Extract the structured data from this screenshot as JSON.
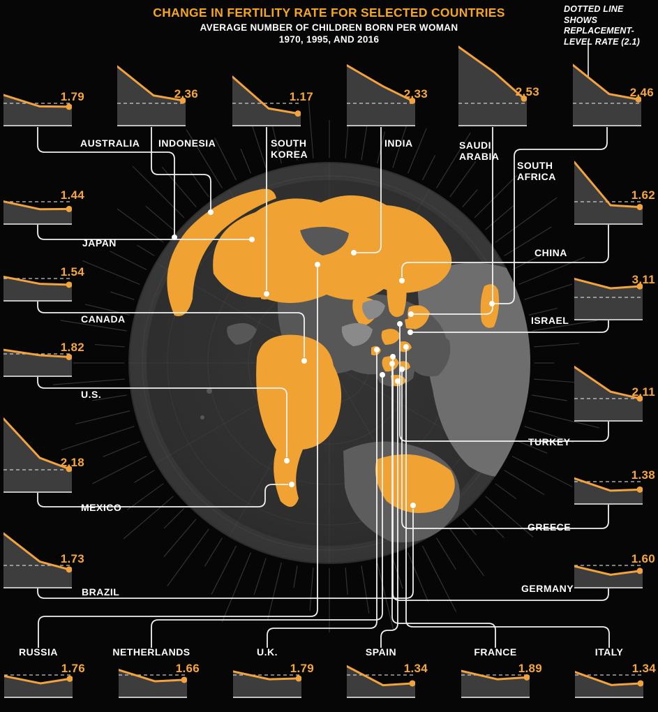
{
  "header": {
    "title": "CHANGE IN FERTILITY RATE FOR SELECTED COUNTRIES",
    "subtitle_line1": "AVERAGE NUMBER OF CHILDREN BORN PER WOMAN",
    "subtitle_line2": "1970, 1995, AND 2016"
  },
  "annotation": {
    "line1": "DOTTED LINE SHOWS",
    "line2": "REPLACEMENT-",
    "line3": "LEVEL RATE (2.1)",
    "replacement_level_rate": 2.1
  },
  "colors": {
    "accent_orange": "#F2A33C",
    "title_orange": "#F5A51E",
    "chart_fill": "#3D3D3D",
    "background": "#060606",
    "text_white": "#FFFFFF"
  },
  "chart_data": {
    "type": "line",
    "title": "CHANGE IN FERTILITY RATE FOR SELECTED COUNTRIES",
    "subtitle": "AVERAGE NUMBER OF CHILDREN BORN PER WOMAN 1970, 1995, AND 2016",
    "x": [
      1970,
      1995,
      2016
    ],
    "replacement_line": 2.1,
    "ylabel": "children born per woman",
    "series": [
      {
        "id": "australia",
        "name": "AUSTRALIA",
        "name_lines": [
          "AUSTRALIA"
        ],
        "values": [
          2.86,
          1.82,
          1.79
        ],
        "label": "1.79"
      },
      {
        "id": "indonesia",
        "name": "INDONESIA",
        "name_lines": [
          "INDONESIA"
        ],
        "values": [
          5.47,
          2.82,
          2.36
        ],
        "label": "2.36"
      },
      {
        "id": "south-korea",
        "name": "SOUTH KOREA",
        "name_lines": [
          "SOUTH",
          "KOREA"
        ],
        "values": [
          4.53,
          1.63,
          1.17
        ],
        "label": "1.17"
      },
      {
        "id": "india",
        "name": "INDIA",
        "name_lines": [
          "INDIA"
        ],
        "values": [
          5.57,
          3.65,
          2.33
        ],
        "label": "2.33"
      },
      {
        "id": "saudi-arabia",
        "name": "SAUDI ARABIA",
        "name_lines": [
          "SAUDI",
          "ARABIA"
        ],
        "values": [
          7.26,
          4.9,
          2.53
        ],
        "label": "2.53"
      },
      {
        "id": "south-africa",
        "name": "SOUTH AFRICA",
        "name_lines": [
          "SOUTH",
          "AFRICA"
        ],
        "values": [
          5.6,
          2.95,
          2.46
        ],
        "label": "2.46"
      },
      {
        "id": "japan",
        "name": "JAPAN",
        "name_lines": [
          "JAPAN"
        ],
        "values": [
          2.13,
          1.42,
          1.44
        ],
        "label": "1.44"
      },
      {
        "id": "canada",
        "name": "CANADA",
        "name_lines": [
          "CANADA"
        ],
        "values": [
          2.26,
          1.62,
          1.54
        ],
        "label": "1.54"
      },
      {
        "id": "us",
        "name": "U.S.",
        "name_lines": [
          "U.S."
        ],
        "values": [
          2.48,
          1.98,
          1.82
        ],
        "label": "1.82"
      },
      {
        "id": "mexico",
        "name": "MEXICO",
        "name_lines": [
          "MEXICO"
        ],
        "values": [
          6.77,
          3.19,
          2.18
        ],
        "label": "2.18"
      },
      {
        "id": "brazil",
        "name": "BRAZIL",
        "name_lines": [
          "BRAZIL"
        ],
        "values": [
          5.02,
          2.45,
          1.73
        ],
        "label": "1.73"
      },
      {
        "id": "china",
        "name": "CHINA",
        "name_lines": [
          "CHINA"
        ],
        "values": [
          5.73,
          1.78,
          1.62
        ],
        "label": "1.62"
      },
      {
        "id": "israel",
        "name": "ISRAEL",
        "name_lines": [
          "ISRAEL"
        ],
        "values": [
          3.79,
          2.93,
          3.11
        ],
        "label": "3.11"
      },
      {
        "id": "turkey",
        "name": "TURKEY",
        "name_lines": [
          "TURKEY"
        ],
        "values": [
          5.0,
          2.73,
          2.11
        ],
        "label": "2.11"
      },
      {
        "id": "greece",
        "name": "GREECE",
        "name_lines": [
          "GREECE"
        ],
        "values": [
          2.4,
          1.28,
          1.38
        ],
        "label": "1.38"
      },
      {
        "id": "germany",
        "name": "GERMANY",
        "name_lines": [
          "GERMANY"
        ],
        "values": [
          2.03,
          1.25,
          1.6
        ],
        "label": "1.60"
      },
      {
        "id": "russia",
        "name": "RUSSIA",
        "name_lines": [
          "RUSSIA"
        ],
        "values": [
          2.01,
          1.34,
          1.76
        ],
        "label": "1.76"
      },
      {
        "id": "netherlands",
        "name": "NETHERLANDS",
        "name_lines": [
          "NETHERLANDS"
        ],
        "values": [
          2.57,
          1.53,
          1.66
        ],
        "label": "1.66"
      },
      {
        "id": "uk",
        "name": "U.K.",
        "name_lines": [
          "U.K."
        ],
        "values": [
          2.43,
          1.71,
          1.79
        ],
        "label": "1.79"
      },
      {
        "id": "spain",
        "name": "SPAIN",
        "name_lines": [
          "SPAIN"
        ],
        "values": [
          2.9,
          1.17,
          1.34
        ],
        "label": "1.34"
      },
      {
        "id": "france",
        "name": "FRANCE",
        "name_lines": [
          "FRANCE"
        ],
        "values": [
          2.48,
          1.71,
          1.89
        ],
        "label": "1.89"
      },
      {
        "id": "italy",
        "name": "ITALY",
        "name_lines": [
          "ITALY"
        ],
        "values": [
          2.38,
          1.19,
          1.34
        ],
        "label": "1.34"
      }
    ]
  }
}
